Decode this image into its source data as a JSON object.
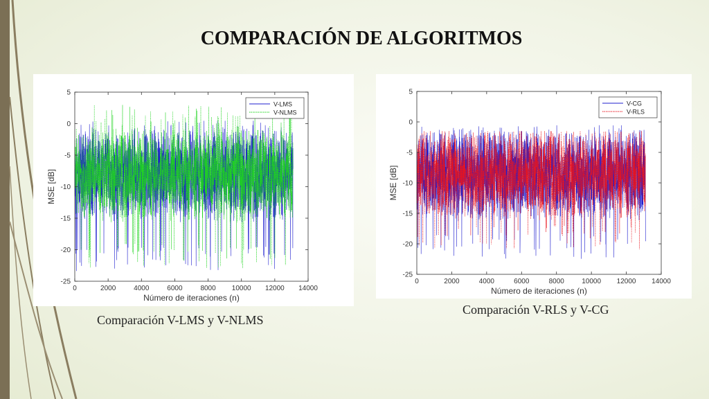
{
  "slide": {
    "title": "COMPARACIÓN DE ALGORITMOS",
    "caption_left": "Comparación V-LMS y V-NLMS",
    "caption_right": "Comparación V-RLS y V-CG",
    "accent_color": "#c0391b",
    "bar_color": "#7b6f55"
  },
  "chart_data": [
    {
      "type": "line",
      "xlabel": "Número de iteraciones (n)",
      "ylabel": "MSE [dB]",
      "xlim": [
        0,
        14000
      ],
      "ylim": [
        -25,
        5
      ],
      "xticks": [
        0,
        2000,
        4000,
        6000,
        8000,
        10000,
        12000,
        14000
      ],
      "yticks": [
        5,
        0,
        -5,
        -10,
        -15,
        -20,
        -25
      ],
      "grid": false,
      "legend_position": "top-right",
      "series": [
        {
          "name": "V-LMS",
          "color": "#1f1fcf",
          "style": "solid",
          "n_points": 13100,
          "mean_db": -8,
          "range_db": [
            -23.5,
            0.5
          ]
        },
        {
          "name": "V-NLMS",
          "color": "#1fd41f",
          "style": "dotted",
          "n_points": 13100,
          "mean_db": -8,
          "range_db": [
            -23,
            3
          ]
        }
      ]
    },
    {
      "type": "line",
      "xlabel": "Número de iteraciones (n)",
      "ylabel": "MSE [dB]",
      "xlim": [
        0,
        14000
      ],
      "ylim": [
        -25,
        5
      ],
      "xticks": [
        0,
        2000,
        4000,
        6000,
        8000,
        10000,
        12000,
        14000
      ],
      "yticks": [
        5,
        0,
        -5,
        -10,
        -15,
        -20,
        -25
      ],
      "grid": false,
      "legend_position": "top-right",
      "series": [
        {
          "name": "V-CG",
          "color": "#1f1fcf",
          "style": "solid",
          "n_points": 13100,
          "mean_db": -8.5,
          "range_db": [
            -22.5,
            -0.5
          ]
        },
        {
          "name": "V-RLS",
          "color": "#e8141e",
          "style": "dotted",
          "n_points": 13100,
          "mean_db": -8.5,
          "range_db": [
            -21,
            -1.5
          ]
        }
      ]
    }
  ]
}
